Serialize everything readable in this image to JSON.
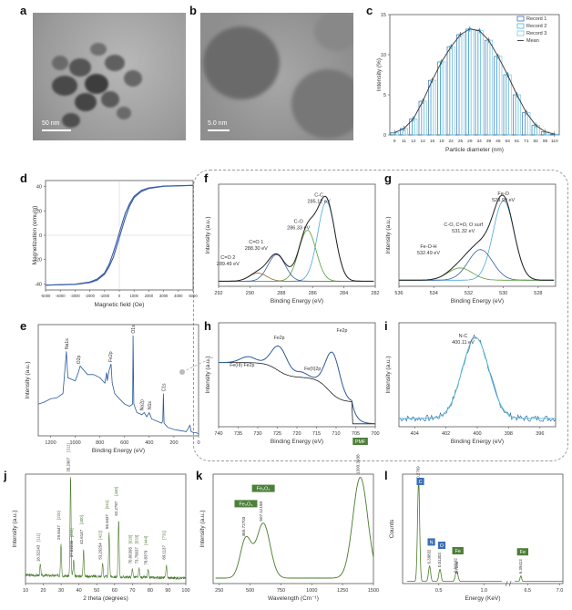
{
  "panels": {
    "a": {
      "letter": "a",
      "scale": "50 nm"
    },
    "b": {
      "letter": "b",
      "scale": "5.0 nm"
    },
    "c": {
      "letter": "c"
    },
    "d": {
      "letter": "d"
    },
    "e": {
      "letter": "e"
    },
    "f": {
      "letter": "f"
    },
    "g": {
      "letter": "g"
    },
    "h": {
      "letter": "h"
    },
    "i": {
      "letter": "i"
    },
    "j": {
      "letter": "j"
    },
    "k": {
      "letter": "k"
    },
    "l": {
      "letter": "l"
    }
  },
  "colors": {
    "blue": "#3a6fb5",
    "cyan": "#46b8d8",
    "green": "#5a8a3a",
    "dark": "#333333",
    "grey": "#888888",
    "tag": "#4f7f3a"
  },
  "chart_data": [
    {
      "id": "c",
      "type": "bar",
      "ylabel": "Intensity (%)",
      "xlabel": "Particle diameter (nm)",
      "ylim": [
        0,
        15
      ],
      "yticks": [
        0,
        5,
        10,
        15
      ],
      "categories": [
        "9",
        "11",
        "12",
        "14",
        "16",
        "19",
        "22",
        "25",
        "29",
        "34",
        "39",
        "46",
        "53",
        "61",
        "71",
        "82",
        "95",
        "110"
      ],
      "series": [
        {
          "name": "Record 1",
          "values": [
            0.3,
            0.8,
            2.0,
            4.2,
            6.8,
            9.1,
            11.0,
            12.5,
            13.2,
            13.0,
            11.8,
            9.8,
            7.5,
            5.0,
            2.8,
            1.2,
            0.4,
            0.1
          ]
        },
        {
          "name": "Record 2",
          "values": [
            0.3,
            0.8,
            2.1,
            4.3,
            6.9,
            9.2,
            11.1,
            12.6,
            13.3,
            13.1,
            11.9,
            9.9,
            7.6,
            5.1,
            2.9,
            1.3,
            0.4,
            0.1
          ]
        },
        {
          "name": "Record 3",
          "values": [
            0.3,
            0.8,
            2.0,
            4.2,
            6.8,
            9.1,
            11.0,
            12.5,
            13.2,
            13.0,
            11.8,
            9.8,
            7.5,
            5.0,
            2.8,
            1.2,
            0.4,
            0.1
          ]
        },
        {
          "name": "Mean",
          "values": [
            0.3,
            0.8,
            2.0,
            4.2,
            6.8,
            9.1,
            11.0,
            12.5,
            13.2,
            13.0,
            11.8,
            9.8,
            7.5,
            5.0,
            2.8,
            1.2,
            0.4,
            0.1
          ]
        }
      ]
    },
    {
      "id": "d",
      "type": "line",
      "ylabel": "Magnetization (emu/g)",
      "xlabel": "Magnetic field (Oe)",
      "xlim": [
        -5000,
        5000
      ],
      "ylim": [
        -45,
        45
      ],
      "xticks": [
        -5000,
        -4000,
        -3000,
        -2000,
        -1000,
        0,
        1000,
        2000,
        3000,
        4000,
        5000
      ],
      "yticks": [
        -40,
        -20,
        0,
        20,
        40
      ],
      "series": [
        {
          "x": [
            -5000,
            -3000,
            -2000,
            -1500,
            -1000,
            -700,
            -400,
            -200,
            0,
            200,
            400,
            700,
            1000,
            1500,
            2000,
            3000,
            5000
          ],
          "y": [
            -41,
            -40.5,
            -39,
            -37,
            -32,
            -26,
            -18,
            -10,
            -2,
            6,
            14,
            24,
            31,
            36,
            38.5,
            40.3,
            41
          ]
        },
        {
          "x": [
            -5000,
            -3000,
            -2000,
            -1500,
            -1000,
            -700,
            -400,
            -200,
            0,
            200,
            400,
            700,
            1000,
            1500,
            2000,
            3000,
            5000
          ],
          "y": [
            -41,
            -40.3,
            -38.5,
            -36,
            -31,
            -24,
            -14,
            -6,
            2,
            10,
            18,
            26,
            32,
            37,
            39,
            40.5,
            41
          ]
        }
      ]
    },
    {
      "id": "e",
      "type": "line",
      "ylabel": "Intensity (a.u.)",
      "xlabel": "Binding Energy (eV)",
      "xlim": [
        1300,
        0
      ],
      "xticks": [
        1200,
        1000,
        800,
        600,
        400,
        200,
        0
      ],
      "labels": [
        "Na1s",
        "O2p",
        "Fe2p",
        "Na2p",
        "O1s",
        "N1s",
        "C1s"
      ],
      "series": [
        {
          "x": [
            1300,
            1250,
            1200,
            1150,
            1100,
            1072,
            1060,
            1000,
            975,
            960,
            900,
            850,
            800,
            760,
            745,
            740,
            725,
            710,
            700,
            680,
            650,
            600,
            560,
            535,
            531,
            525,
            500,
            460,
            440,
            420,
            400,
            380,
            340,
            300,
            290,
            285,
            280,
            250,
            200,
            150,
            100,
            70,
            60,
            40,
            20,
            0
          ],
          "y": [
            0.3,
            0.32,
            0.35,
            0.36,
            0.4,
            0.8,
            0.55,
            0.52,
            0.6,
            0.66,
            0.58,
            0.58,
            0.55,
            0.5,
            0.6,
            0.52,
            0.62,
            0.68,
            0.5,
            0.4,
            0.36,
            0.3,
            0.28,
            0.3,
            0.95,
            0.3,
            0.22,
            0.2,
            0.22,
            0.18,
            0.22,
            0.16,
            0.14,
            0.12,
            0.14,
            0.4,
            0.12,
            0.08,
            0.06,
            0.05,
            0.04,
            0.1,
            0.04,
            0.03,
            0.03,
            0.02
          ]
        }
      ]
    },
    {
      "id": "f",
      "type": "line",
      "ylabel": "Intensity (a.u.)",
      "xlabel": "Binding Energy (eV)",
      "xlim": [
        292,
        282
      ],
      "xticks": [
        292,
        290,
        288,
        286,
        284,
        282
      ],
      "annotations": [
        "C-C 285.12 eV",
        "C-O 286.33 eV",
        "C=O 1 288.30 eV",
        "C=O 2 289.49 eV"
      ]
    },
    {
      "id": "g",
      "type": "line",
      "ylabel": "Intensity (a.u.)",
      "xlabel": "Binding Energy (eV)",
      "xlim": [
        536,
        527
      ],
      "xticks": [
        536,
        534,
        532,
        530,
        528
      ],
      "annotations": [
        "Fe-O 529.99 eV",
        "C-O, C=O, O surf 531.32 eV",
        "Fe-O-H 532.49 eV"
      ]
    },
    {
      "id": "h",
      "type": "line",
      "ylabel": "Intensity (a.u.)",
      "xlabel": "Binding Energy (eV)",
      "xlim": [
        740,
        700
      ],
      "xticks": [
        740,
        735,
        730,
        725,
        720,
        715,
        710,
        705,
        700
      ],
      "annotations": [
        "Fe(III) Fe2p",
        "Fe2p",
        "Fe(II)2p",
        "Fe2p"
      ]
    },
    {
      "id": "i",
      "type": "line",
      "ylabel": "Intensity (a.u.)",
      "xlabel": "Binding Energy (eV)",
      "xlim": [
        405,
        395
      ],
      "xticks": [
        404,
        402,
        400,
        398,
        396
      ],
      "annotations": [
        "N-C 400.11 eV"
      ]
    },
    {
      "id": "j",
      "type": "line",
      "ylabel": "Intensity (a.u.)",
      "xlabel": "2 theta (degrees)",
      "xlim": [
        10,
        100
      ],
      "xticks": [
        10,
        20,
        30,
        40,
        50,
        60,
        70,
        80,
        90,
        100
      ],
      "peaks": [
        {
          "x": 18.32243,
          "h": 0.1,
          "label": "18.32243",
          "hkl": "[111]"
        },
        {
          "x": 29.9447,
          "h": 0.3,
          "label": "29.9447",
          "hkl": "[220]"
        },
        {
          "x": 35.2907,
          "h": 0.92,
          "label": "35.2907",
          "hkl": "[311]"
        },
        {
          "x": 37.02236,
          "h": 0.14,
          "label": "37.02236",
          "hkl": "[222]"
        },
        {
          "x": 42.6147,
          "h": 0.26,
          "label": "42.6147",
          "hkl": "[400]"
        },
        {
          "x": 53.29254,
          "h": 0.12,
          "label": "53.29254",
          "hkl": "[422]"
        },
        {
          "x": 56.9437,
          "h": 0.4,
          "label": "56.9437",
          "hkl": "[511]"
        },
        {
          "x": 62.2787,
          "h": 0.52,
          "label": "62.2787",
          "hkl": "[440]"
        },
        {
          "x": 70.06395,
          "h": 0.08,
          "label": "70.06395",
          "hkl": "[620]"
        },
        {
          "x": 73.75037,
          "h": 0.08,
          "label": "73.75037",
          "hkl": "[533]"
        },
        {
          "x": 78.8379,
          "h": 0.07,
          "label": "78.8379",
          "hkl": "[444]"
        },
        {
          "x": 89.1137,
          "h": 0.12,
          "label": "89.1137",
          "hkl": "[731]"
        }
      ]
    },
    {
      "id": "k",
      "type": "line",
      "ylabel": "Intensity (a.u.)",
      "xlabel": "Wavelength (Cm⁻¹)",
      "xlim": [
        200,
        1500
      ],
      "xticks": [
        250,
        500,
        750,
        1000,
        1250,
        1500
      ],
      "peaks": [
        {
          "x": 465.72703,
          "h": 0.38,
          "label": "465.72703",
          "tag": "Fe₃O₄"
        },
        {
          "x": 607.12189,
          "h": 0.52,
          "label": "607.12189",
          "tag": "Fe₂O₃"
        },
        {
          "x": 1393.3938,
          "h": 0.95,
          "label": "1393.3938",
          "tag": "PMF"
        }
      ]
    },
    {
      "id": "l",
      "type": "bar",
      "ylabel": "Counts",
      "xlabel": "Energy (KeV)",
      "xticks": [
        "0.5",
        "1.0",
        "6.5",
        "7.0"
      ],
      "peaks": [
        {
          "x": 0.2769,
          "h": 0.92,
          "label": "0.2769",
          "tag": "C"
        },
        {
          "x": 0.39832,
          "h": 0.14,
          "label": "0.39832",
          "tag": "N"
        },
        {
          "x": 0.51303,
          "h": 0.11,
          "label": "0.51303",
          "tag": "O"
        },
        {
          "x": 0.69192,
          "h": 0.06,
          "label": "0.69192",
          "tag": "Fe"
        },
        {
          "x": 0.7066,
          "h": 0.05,
          "label": "0.7066",
          "tag": ""
        },
        {
          "x": 6.39413,
          "h": 0.05,
          "label": "6.39413",
          "tag": "Fe"
        }
      ]
    }
  ]
}
